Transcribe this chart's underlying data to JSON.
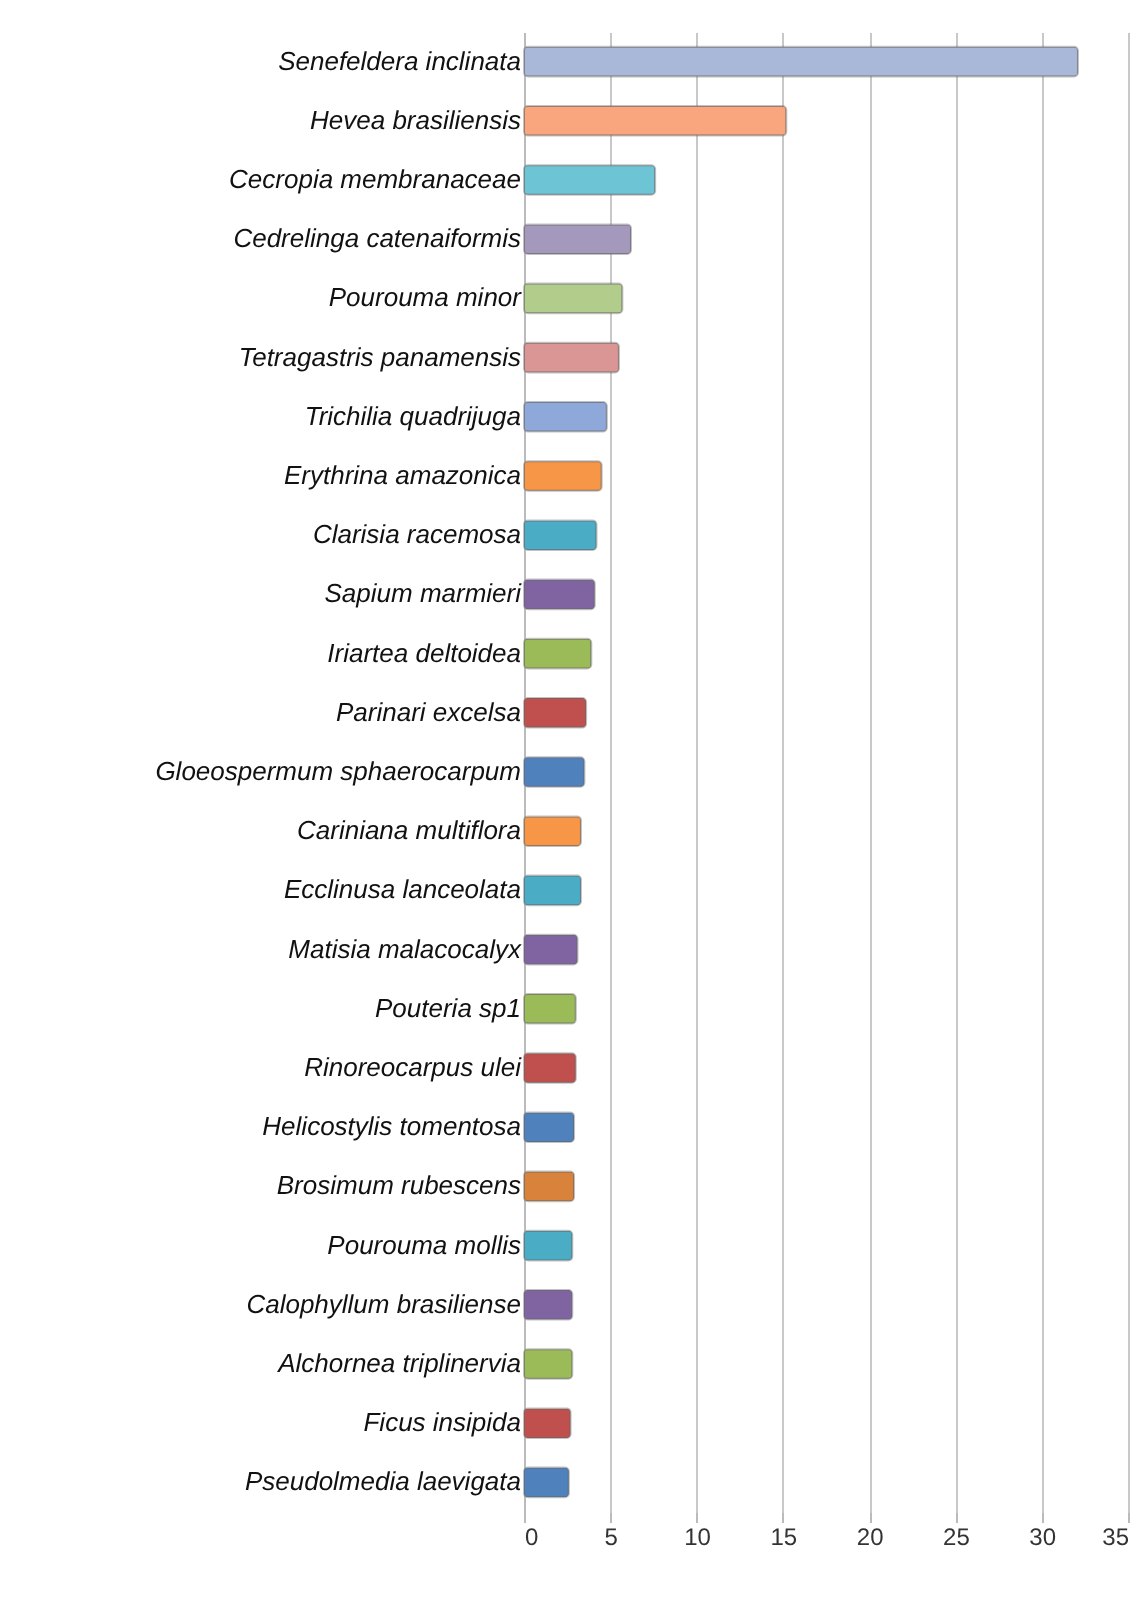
{
  "chart_data": {
    "type": "bar",
    "orientation": "horizontal",
    "categories": [
      "Senefeldera inclinata",
      "Hevea brasiliensis",
      "Cecropia membranaceae",
      "Cedrelinga catenaiformis",
      "Pourouma minor",
      "Tetragastris panamensis",
      "Trichilia quadrijuga",
      "Erythrina amazonica",
      "Clarisia racemosa",
      "Sapium marmieri",
      "Iriartea deltoidea",
      "Parinari excelsa",
      "Gloeospermum sphaerocarpum",
      "Cariniana multiflora",
      "Ecclinusa lanceolata",
      "Matisia malacocalyx",
      "Pouteria sp1",
      "Rinoreocarpus ulei",
      "Helicostylis tomentosa",
      "Brosimum rubescens",
      "Pourouma mollis",
      "Calophyllum brasiliense",
      "Alchornea triplinervia",
      "Ficus insipida",
      "Pseudolmedia laevigata"
    ],
    "values": [
      32.1,
      15.2,
      7.6,
      6.2,
      5.7,
      5.5,
      4.8,
      4.5,
      4.2,
      4.1,
      3.9,
      3.6,
      3.5,
      3.3,
      3.3,
      3.1,
      3.0,
      3.0,
      2.9,
      2.9,
      2.8,
      2.8,
      2.8,
      2.7,
      2.6
    ],
    "colors": [
      "#a9b8d8",
      "#f9a57e",
      "#6cc4d4",
      "#a499bd",
      "#b2cc8c",
      "#d99694",
      "#8ea9d9",
      "#f79646",
      "#4bacc6",
      "#8064a2",
      "#9bbb59",
      "#c0504d",
      "#4f81bd",
      "#f79646",
      "#4bacc6",
      "#8064a2",
      "#9bbb59",
      "#c0504d",
      "#4f81bd",
      "#d9823b",
      "#4bacc6",
      "#8064a2",
      "#9bbb59",
      "#c0504d",
      "#4f81bd"
    ],
    "xlim": [
      0,
      35
    ],
    "xticks": [
      0,
      5,
      10,
      15,
      20,
      25,
      30,
      35
    ],
    "grid": "x"
  }
}
